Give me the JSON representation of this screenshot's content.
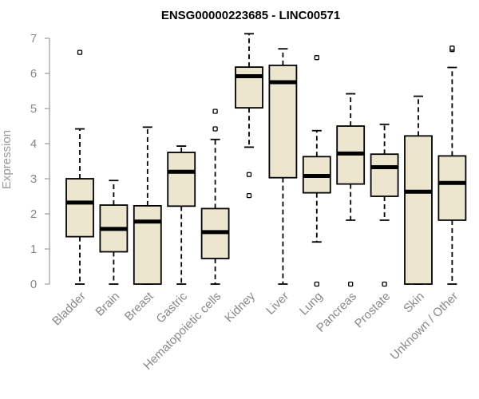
{
  "chart_data": {
    "type": "boxplot",
    "title": "ENSG00000223685 - LINC00571",
    "ylabel": "Expression",
    "xlabel": "",
    "ylim": [
      0,
      7
    ],
    "yticks": [
      0,
      1,
      2,
      3,
      4,
      5,
      6,
      7
    ],
    "grid": false,
    "colors": {
      "box_fill": "#EDE6CF",
      "stroke": "#000000",
      "axis": "#888888"
    },
    "categories": [
      "Bladder",
      "Brain",
      "Breast",
      "Gastric",
      "Hematopoietic cells",
      "Kidney",
      "Liver",
      "Lung",
      "Pancreas",
      "Prostate",
      "Skin",
      "Unknown / Other"
    ],
    "boxes": [
      {
        "min": 0.0,
        "q1": 1.35,
        "median": 2.32,
        "q3": 3.0,
        "max": 4.42,
        "outliers": [
          6.6
        ]
      },
      {
        "min": 0.0,
        "q1": 0.92,
        "median": 1.57,
        "q3": 2.25,
        "max": 2.95,
        "outliers": []
      },
      {
        "min": 0.0,
        "q1": 0.0,
        "median": 1.78,
        "q3": 2.23,
        "max": 4.47,
        "outliers": []
      },
      {
        "min": 0.0,
        "q1": 2.22,
        "median": 3.2,
        "q3": 3.75,
        "max": 3.93,
        "outliers": []
      },
      {
        "min": 0.0,
        "q1": 0.73,
        "median": 1.48,
        "q3": 2.15,
        "max": 4.12,
        "outliers": [
          4.42,
          4.92
        ]
      },
      {
        "min": 3.9,
        "q1": 5.02,
        "median": 5.92,
        "q3": 6.18,
        "max": 7.13,
        "outliers": [
          3.12,
          2.52
        ]
      },
      {
        "min": 0.0,
        "q1": 3.03,
        "median": 5.75,
        "q3": 6.23,
        "max": 6.7,
        "outliers": []
      },
      {
        "min": 1.2,
        "q1": 2.6,
        "median": 3.08,
        "q3": 3.63,
        "max": 4.37,
        "outliers": [
          6.45,
          0.0
        ]
      },
      {
        "min": 1.82,
        "q1": 2.85,
        "median": 3.72,
        "q3": 4.5,
        "max": 5.42,
        "outliers": [
          0.0
        ]
      },
      {
        "min": 1.82,
        "q1": 2.5,
        "median": 3.33,
        "q3": 3.7,
        "max": 4.55,
        "outliers": [
          0.0
        ]
      },
      {
        "min": 0.0,
        "q1": 0.0,
        "median": 2.63,
        "q3": 4.22,
        "max": 5.35,
        "outliers": []
      },
      {
        "min": 0.0,
        "q1": 1.82,
        "median": 2.88,
        "q3": 3.65,
        "max": 6.17,
        "outliers": [
          6.68,
          6.72
        ]
      }
    ]
  }
}
